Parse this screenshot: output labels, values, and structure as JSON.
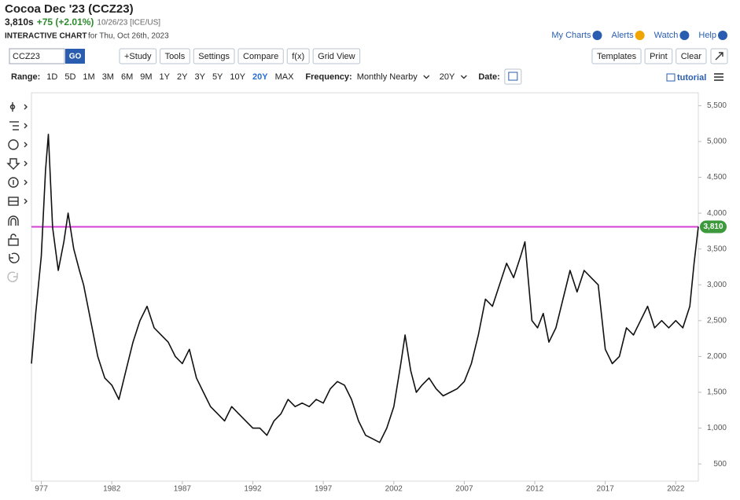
{
  "header": {
    "title": "Cocoa Dec '23 (CCZ23)",
    "price": "3,810s",
    "change": "+75 (+2.01%)",
    "meta": "10/26/23 [ICE/US]",
    "chart_label": "INTERACTIVE CHART",
    "chart_date": "for Thu, Oct 26th, 2023"
  },
  "top_links": [
    "My Charts",
    "Alerts",
    "Watch",
    "Help"
  ],
  "toolbar": {
    "symbol": "CCZ23",
    "go": "GO",
    "buttons": [
      "+Study",
      "Tools",
      "Settings",
      "Compare",
      "f(x)",
      "Grid View"
    ],
    "right_buttons": [
      "Templates",
      "Print",
      "Clear"
    ]
  },
  "range_bar": {
    "label": "Range:",
    "ranges": [
      "1D",
      "5D",
      "1M",
      "3M",
      "6M",
      "9M",
      "1Y",
      "2Y",
      "3Y",
      "5Y",
      "10Y",
      "20Y",
      "MAX"
    ],
    "active_index": 11,
    "active_color": "#2a6fd6",
    "frequency_label": "Frequency:",
    "frequency": "Monthly Nearby",
    "period": "20Y",
    "date_label": "Date:",
    "tutorial": "tutorial"
  },
  "chart_data": {
    "type": "line",
    "color": "#111111",
    "x": [
      1976.3,
      1976.6,
      1977.0,
      1977.3,
      1977.5,
      1977.8,
      1978.2,
      1978.6,
      1978.9,
      1979.3,
      1979.7,
      1980.0,
      1980.5,
      1981.0,
      1981.5,
      1982.0,
      1982.5,
      1983.0,
      1983.5,
      1984.0,
      1984.5,
      1985.0,
      1985.5,
      1986.0,
      1986.5,
      1987.0,
      1987.5,
      1988.0,
      1988.5,
      1989.0,
      1989.5,
      1990.0,
      1990.5,
      1991.0,
      1991.5,
      1992.0,
      1992.5,
      1993.0,
      1993.5,
      1994.0,
      1994.5,
      1995.0,
      1995.5,
      1996.0,
      1996.5,
      1997.0,
      1997.5,
      1998.0,
      1998.5,
      1999.0,
      1999.5,
      2000.0,
      2000.5,
      2001.0,
      2001.5,
      2002.0,
      2002.5,
      2002.8,
      2003.2,
      2003.6,
      2004.0,
      2004.5,
      2005.0,
      2005.5,
      2006.0,
      2006.5,
      2007.0,
      2007.5,
      2008.0,
      2008.5,
      2009.0,
      2009.5,
      2010.0,
      2010.5,
      2011.0,
      2011.3,
      2011.8,
      2012.2,
      2012.6,
      2013.0,
      2013.5,
      2014.0,
      2014.5,
      2015.0,
      2015.5,
      2016.0,
      2016.5,
      2017.0,
      2017.5,
      2018.0,
      2018.5,
      2019.0,
      2019.5,
      2020.0,
      2020.5,
      2021.0,
      2021.5,
      2022.0,
      2022.5,
      2023.0,
      2023.3,
      2023.6
    ],
    "values": [
      1900,
      2600,
      3400,
      4600,
      5100,
      3800,
      3200,
      3600,
      4000,
      3500,
      3200,
      3000,
      2500,
      2000,
      1700,
      1600,
      1400,
      1800,
      2200,
      2500,
      2700,
      2400,
      2300,
      2200,
      2000,
      1900,
      2100,
      1700,
      1500,
      1300,
      1200,
      1100,
      1300,
      1200,
      1100,
      1000,
      1000,
      900,
      1100,
      1200,
      1400,
      1300,
      1350,
      1300,
      1400,
      1350,
      1550,
      1650,
      1600,
      1400,
      1100,
      900,
      850,
      800,
      1000,
      1300,
      1900,
      2300,
      1800,
      1500,
      1600,
      1700,
      1550,
      1450,
      1500,
      1550,
      1650,
      1900,
      2300,
      2800,
      2700,
      3000,
      3300,
      3100,
      3400,
      3600,
      2500,
      2400,
      2600,
      2200,
      2400,
      2800,
      3200,
      2900,
      3200,
      3100,
      3000,
      2100,
      1900,
      2000,
      2400,
      2300,
      2500,
      2700,
      2400,
      2500,
      2400,
      2500,
      2400,
      2700,
      3300,
      3810
    ],
    "xlim": [
      1976.3,
      2023.6
    ],
    "ylim": [
      260,
      5680
    ],
    "xticks": [
      {
        "value": 1977,
        "label": "977"
      },
      1982,
      1987,
      1992,
      1997,
      2002,
      2007,
      2012,
      2017,
      2022
    ],
    "yticks": [
      500,
      {
        "value": 1000,
        "label": "1,000"
      },
      {
        "value": 1500,
        "label": "1,500"
      },
      {
        "value": 2000,
        "label": "2,000"
      },
      {
        "value": 2500,
        "label": "2,500"
      },
      {
        "value": 3000,
        "label": "3,000"
      },
      {
        "value": 3500,
        "label": "3,500"
      },
      {
        "value": 4000,
        "label": "4,000"
      },
      {
        "value": 4500,
        "label": "4,500"
      },
      {
        "value": 5000,
        "label": "5,000"
      },
      {
        "value": 5500,
        "label": "5,500"
      }
    ],
    "reference_line": {
      "value": 3810,
      "label": "3,810",
      "color": "#d63fd6",
      "label_color": "#3c9a3c"
    }
  }
}
